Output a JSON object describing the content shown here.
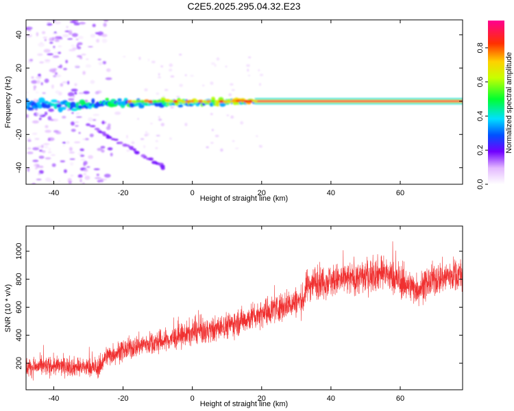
{
  "title": "C2E5.2025.295.04.32.E23",
  "chart_data": [
    {
      "type": "heatmap",
      "name": "spectrogram",
      "xlabel": "Height of straight line (km)",
      "ylabel": "Frequency (Hz)",
      "xlim": [
        -48,
        78
      ],
      "ylim": [
        -50,
        49
      ],
      "xticks": [
        -40,
        -20,
        0,
        20,
        40,
        60
      ],
      "yticks": [
        -40,
        -20,
        0,
        20,
        40
      ],
      "grid": false,
      "colorbar": {
        "label": "Normalized spectral amplitude",
        "range": [
          0.0,
          0.96
        ],
        "ticks": [
          0.0,
          0.2,
          0.4,
          0.6,
          0.8
        ],
        "tick_labels": [
          "0.0",
          "0.2",
          "0.4",
          "0.6",
          "0.8"
        ]
      },
      "features": {
        "carrier_band": {
          "frequency_hz": 0,
          "x_start": 18,
          "x_end": 78,
          "amplitude": 0.95
        },
        "noisy_band": {
          "x_start": -48,
          "x_end": 18,
          "amplitude_range": [
            0.1,
            0.7
          ]
        },
        "diagonal_trace": {
          "from": [
            -30,
            -14
          ],
          "to": [
            -8,
            -40
          ],
          "amplitude": 0.15
        },
        "scatter_region": {
          "x_start": -48,
          "x_end": -20,
          "amplitude_range": [
            0.02,
            0.2
          ]
        }
      }
    },
    {
      "type": "line",
      "name": "snr",
      "xlabel": "Height of straight line (km)",
      "ylabel": "SNR (10 * v/v)",
      "xlim": [
        -48,
        78
      ],
      "ylim": [
        10,
        1180
      ],
      "xticks": [
        -40,
        -20,
        0,
        20,
        40,
        60
      ],
      "yticks": [
        200,
        400,
        600,
        800,
        1000
      ],
      "color": "#f03030",
      "grid": false,
      "trend": {
        "x": [
          -48,
          -40,
          -30,
          -27,
          -25,
          -20,
          -15,
          -10,
          -5,
          0,
          5,
          10,
          15,
          20,
          25,
          30,
          32,
          33,
          35,
          40,
          45,
          50,
          55,
          60,
          65,
          70,
          75,
          78
        ],
        "y": [
          170,
          180,
          170,
          160,
          250,
          290,
          330,
          350,
          380,
          420,
          430,
          470,
          510,
          560,
          600,
          640,
          650,
          750,
          780,
          790,
          800,
          820,
          850,
          780,
          730,
          800,
          830,
          840
        ]
      },
      "noise_amplitude": 140,
      "point_count": 3000
    }
  ]
}
